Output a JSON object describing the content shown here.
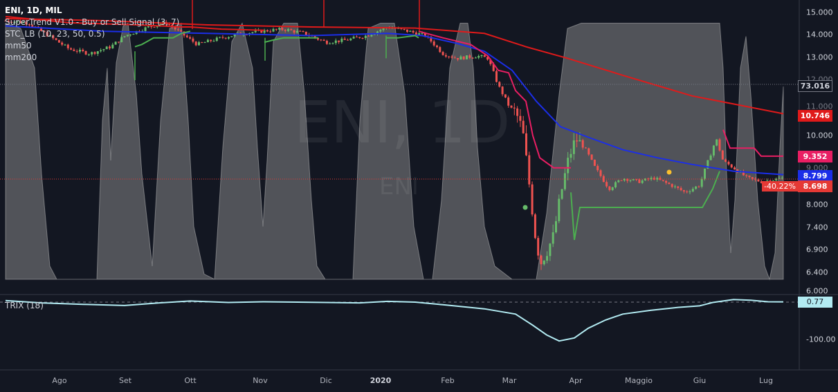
{
  "chart_header": {
    "title": "ENI, 1D, MIL",
    "indicators": [
      "SuperTrend V1.0 - Buy or Sell Signal (3, 7)",
      "STC_LB (10, 23, 50, 0.5)",
      "mm50",
      "mm200"
    ],
    "trix_label": "TRIX (18)",
    "watermark_symbol": "ENI, 1D",
    "watermark_name": "ENI"
  },
  "price_axis": {
    "ticks": [
      "15.000",
      "14.000",
      "13.000",
      "12.000",
      "11.000",
      "10.000",
      "9.000",
      "8.000",
      "7.400",
      "6.900",
      "6.400",
      "6.000"
    ]
  },
  "trix_axis": {
    "ticks": [
      "-100.00"
    ]
  },
  "time_axis": {
    "labels": [
      "Ago",
      "Set",
      "Ott",
      "Nov",
      "Dic",
      "2020",
      "Feb",
      "Mar",
      "Apr",
      "Maggio",
      "Giu",
      "Lug"
    ]
  },
  "price_tags": {
    "stc": "73.016",
    "mm200": "10.746",
    "supertrend": "9.352",
    "mm50": "8.799",
    "last": "8.698",
    "change_pct": "-40.22%",
    "trix": "0.77"
  },
  "colors": {
    "background": "#131722",
    "candle_up": "#66bb6a",
    "candle_down": "#ef5350",
    "mm50": "#1b2ee8",
    "mm200": "#e01a1a",
    "supertrend_up": "#4caf50",
    "supertrend_down": "#e91e63",
    "stc_fill": "#9e9e9e",
    "trix": "#b2ebf2"
  },
  "chart_data": [
    {
      "type": "line",
      "title": "ENI, 1D, MIL",
      "xlabel": "",
      "ylabel": "",
      "x_labels": [
        "Ago",
        "Set",
        "Ott",
        "Nov",
        "Dic",
        "2020",
        "Feb",
        "Mar",
        "Apr",
        "Maggio",
        "Giu",
        "Lug"
      ],
      "ylim": [
        6.0,
        15.0
      ],
      "log_scale": true,
      "series": [
        {
          "name": "mm200",
          "values": [
            14.7,
            14.6,
            14.5,
            14.4,
            14.3,
            14.25,
            14.2,
            14.05,
            13.4,
            12.5,
            11.8,
            11.2,
            10.75
          ]
        },
        {
          "name": "mm50",
          "values": [
            14.2,
            14.1,
            14.0,
            13.9,
            13.9,
            13.95,
            13.9,
            13.3,
            12.0,
            10.0,
            9.4,
            9.0,
            8.8
          ]
        },
        {
          "name": "SuperTrend V1.0 - Buy or Sell Signal (3, 7)",
          "values": [
            null,
            null,
            14.3,
            null,
            null,
            13.8,
            14.1,
            12.5,
            9.0,
            7.9,
            7.9,
            9.35,
            9.35
          ]
        }
      ],
      "x": [
        "Ago",
        "Set",
        "Ott",
        "Nov",
        "Dic",
        "2020",
        "Feb",
        "Mar",
        "Mar",
        "Apr",
        "Maggio",
        "Giu",
        "Lug"
      ],
      "close_samples": [
        13.4,
        13.9,
        13.8,
        14.2,
        13.9,
        14.1,
        13.1,
        11.0,
        6.8,
        9.5,
        8.5,
        9.7,
        8.7
      ],
      "last_price": 8.698,
      "change_percent": -40.22
    },
    {
      "type": "line",
      "title": "TRIX (18)",
      "xlabel": "",
      "ylabel": "",
      "series": [
        {
          "name": "TRIX (18)",
          "values": [
            5,
            -5,
            5,
            2,
            4,
            -3,
            -30,
            -105,
            -60,
            -25,
            -10,
            8,
            0.77
          ]
        }
      ],
      "last_value": 0.77
    }
  ]
}
